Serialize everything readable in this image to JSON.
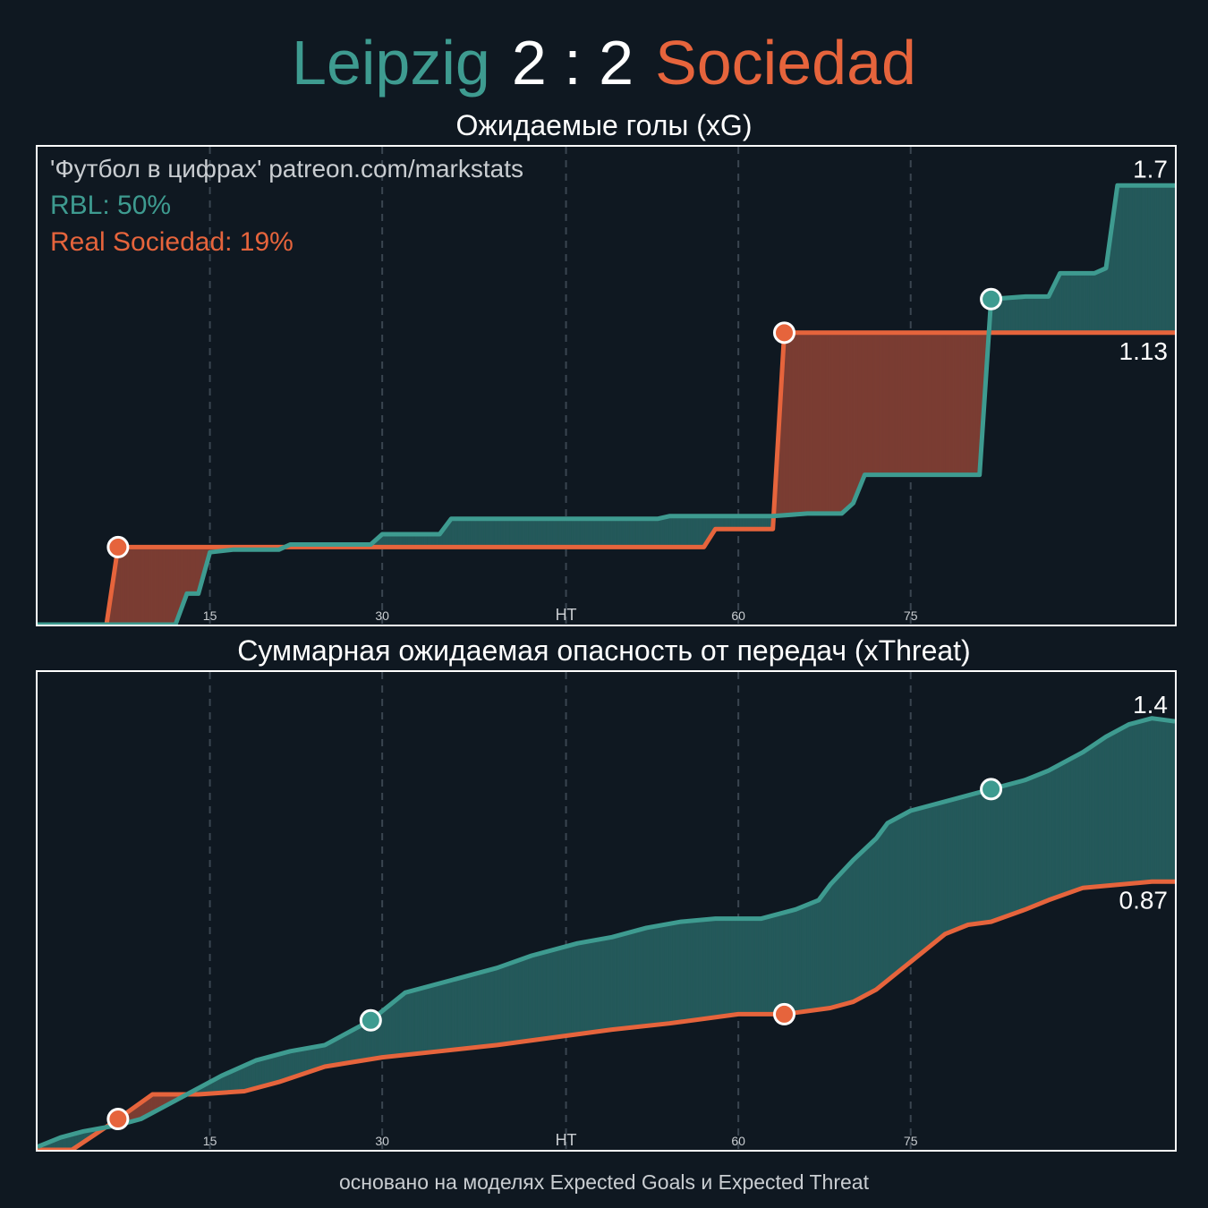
{
  "header": {
    "home_team": "Leipzig",
    "score": "2 : 2",
    "away_team": "Sociedad"
  },
  "watermark": "'Футбол в цифрах' patreon.com/markstats",
  "legend": {
    "home": "RBL: 50%",
    "away": "Real Sociedad: 19%"
  },
  "footer": "основано на моделях Expected Goals и Expected Threat",
  "colors": {
    "background": "#0f1821",
    "home": "#3e9b90",
    "away": "#e6643c",
    "home_fill": "#24595a",
    "away_fill": "#7a3d33",
    "grid": "#3a4550"
  },
  "chart_data": [
    {
      "type": "line",
      "title": "Ожидаемые голы (xG)",
      "step": true,
      "xlim": [
        0,
        99
      ],
      "ylim": [
        0,
        1.85
      ],
      "x_ticks": [
        {
          "value": 15,
          "label": "15"
        },
        {
          "value": 30,
          "label": "30"
        },
        {
          "value": 46,
          "label": "HT"
        },
        {
          "value": 61,
          "label": "60"
        },
        {
          "value": 76,
          "label": "75"
        }
      ],
      "end_labels": {
        "home": "1.7",
        "away": "1.13"
      },
      "series": [
        {
          "name": "RBL",
          "team": "home",
          "points": [
            [
              0,
              0
            ],
            [
              12,
              0
            ],
            [
              13,
              0.12
            ],
            [
              14,
              0.12
            ],
            [
              15,
              0.28
            ],
            [
              17,
              0.29
            ],
            [
              21,
              0.29
            ],
            [
              22,
              0.31
            ],
            [
              29,
              0.31
            ],
            [
              30,
              0.35
            ],
            [
              35,
              0.35
            ],
            [
              36,
              0.41
            ],
            [
              54,
              0.41
            ],
            [
              55,
              0.42
            ],
            [
              64,
              0.42
            ],
            [
              67,
              0.43
            ],
            [
              70,
              0.43
            ],
            [
              71,
              0.47
            ],
            [
              72,
              0.58
            ],
            [
              82,
              0.58
            ],
            [
              83,
              1.26
            ],
            [
              86,
              1.27
            ],
            [
              88,
              1.27
            ],
            [
              89,
              1.36
            ],
            [
              92,
              1.36
            ],
            [
              93,
              1.38
            ],
            [
              94,
              1.7
            ],
            [
              99,
              1.7
            ]
          ],
          "goals": [
            [
              83,
              1.26
            ]
          ]
        },
        {
          "name": "Real Sociedad",
          "team": "away",
          "points": [
            [
              0,
              0
            ],
            [
              6,
              0
            ],
            [
              7,
              0.3
            ],
            [
              58,
              0.3
            ],
            [
              59,
              0.37
            ],
            [
              64,
              0.37
            ],
            [
              65,
              1.13
            ],
            [
              99,
              1.13
            ]
          ],
          "goals": [
            [
              7,
              0.3
            ],
            [
              65,
              1.13
            ]
          ]
        }
      ]
    },
    {
      "type": "line",
      "title": "Суммарная ожидаемая опасность от передач (xThreat)",
      "step": false,
      "xlim": [
        0,
        99
      ],
      "ylim": [
        0,
        1.55
      ],
      "x_ticks": [
        {
          "value": 15,
          "label": "15"
        },
        {
          "value": 30,
          "label": "30"
        },
        {
          "value": 46,
          "label": "HT"
        },
        {
          "value": 61,
          "label": "60"
        },
        {
          "value": 76,
          "label": "75"
        }
      ],
      "end_labels": {
        "home": "1.4",
        "away": "0.87"
      },
      "series": [
        {
          "name": "RBL",
          "team": "home",
          "points": [
            [
              0,
              0.01
            ],
            [
              2,
              0.04
            ],
            [
              4,
              0.06
            ],
            [
              7,
              0.08
            ],
            [
              9,
              0.1
            ],
            [
              11,
              0.14
            ],
            [
              13,
              0.18
            ],
            [
              16,
              0.24
            ],
            [
              19,
              0.29
            ],
            [
              22,
              0.32
            ],
            [
              25,
              0.34
            ],
            [
              29,
              0.42
            ],
            [
              32,
              0.51
            ],
            [
              36,
              0.55
            ],
            [
              40,
              0.59
            ],
            [
              43,
              0.63
            ],
            [
              47,
              0.67
            ],
            [
              50,
              0.69
            ],
            [
              53,
              0.72
            ],
            [
              56,
              0.74
            ],
            [
              59,
              0.75
            ],
            [
              63,
              0.75
            ],
            [
              66,
              0.78
            ],
            [
              68,
              0.81
            ],
            [
              69,
              0.86
            ],
            [
              71,
              0.94
            ],
            [
              73,
              1.01
            ],
            [
              74,
              1.06
            ],
            [
              76,
              1.1
            ],
            [
              80,
              1.14
            ],
            [
              83,
              1.17
            ],
            [
              86,
              1.2
            ],
            [
              88,
              1.23
            ],
            [
              91,
              1.29
            ],
            [
              93,
              1.34
            ],
            [
              95,
              1.38
            ],
            [
              97,
              1.4
            ],
            [
              99,
              1.39
            ]
          ],
          "goals": [
            [
              29,
              0.42
            ],
            [
              83,
              1.17
            ]
          ]
        },
        {
          "name": "Real Sociedad",
          "team": "away",
          "points": [
            [
              0,
              0
            ],
            [
              3,
              0
            ],
            [
              5,
              0.05
            ],
            [
              7,
              0.1
            ],
            [
              10,
              0.18
            ],
            [
              14,
              0.18
            ],
            [
              18,
              0.19
            ],
            [
              21,
              0.22
            ],
            [
              25,
              0.27
            ],
            [
              30,
              0.3
            ],
            [
              35,
              0.32
            ],
            [
              40,
              0.34
            ],
            [
              46,
              0.37
            ],
            [
              50,
              0.39
            ],
            [
              55,
              0.41
            ],
            [
              61,
              0.44
            ],
            [
              65,
              0.44
            ],
            [
              69,
              0.46
            ],
            [
              71,
              0.48
            ],
            [
              73,
              0.52
            ],
            [
              75,
              0.58
            ],
            [
              77,
              0.64
            ],
            [
              79,
              0.7
            ],
            [
              81,
              0.73
            ],
            [
              83,
              0.74
            ],
            [
              86,
              0.78
            ],
            [
              88,
              0.81
            ],
            [
              91,
              0.85
            ],
            [
              94,
              0.86
            ],
            [
              97,
              0.87
            ],
            [
              99,
              0.87
            ]
          ],
          "goals": [
            [
              7,
              0.1
            ],
            [
              65,
              0.44
            ]
          ]
        }
      ]
    }
  ]
}
